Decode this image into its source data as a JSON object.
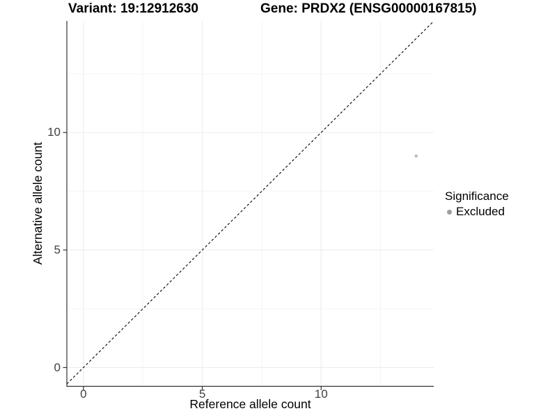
{
  "chart_data": {
    "type": "scatter",
    "title_left": "Variant: 19:12912630",
    "title_right": "Gene: PRDX2 (ENSG00000167815)",
    "xlabel": "Reference allele count",
    "ylabel": "Alternative allele count",
    "xlim": [
      -0.7,
      14.74
    ],
    "ylim": [
      -0.8,
      14.75
    ],
    "x_ticks": [
      0,
      5,
      10
    ],
    "y_ticks": [
      0,
      5,
      10
    ],
    "x_minor_ticks": [
      2.5,
      7.5,
      12.5
    ],
    "y_minor_ticks": [
      2.5,
      7.5,
      12.5
    ],
    "grid": true,
    "points": [
      {
        "x": 14,
        "y": 9,
        "series": "Excluded"
      }
    ],
    "reference_line": {
      "type": "identity",
      "slope": 1,
      "intercept": 0,
      "style": "dashed"
    },
    "legend": {
      "position": "right",
      "title": "Significance",
      "entries": [
        {
          "label": "Excluded",
          "color": "#9e9e9e"
        }
      ]
    },
    "colors": {
      "background": "#ffffff",
      "axis": "#333333",
      "grid_major": "#ebebeb",
      "grid_minor": "#f5f5f5",
      "reference_line": "#000000",
      "point": "#bdbdbd",
      "tick_text": "#404040",
      "title_text": "#000000"
    }
  }
}
